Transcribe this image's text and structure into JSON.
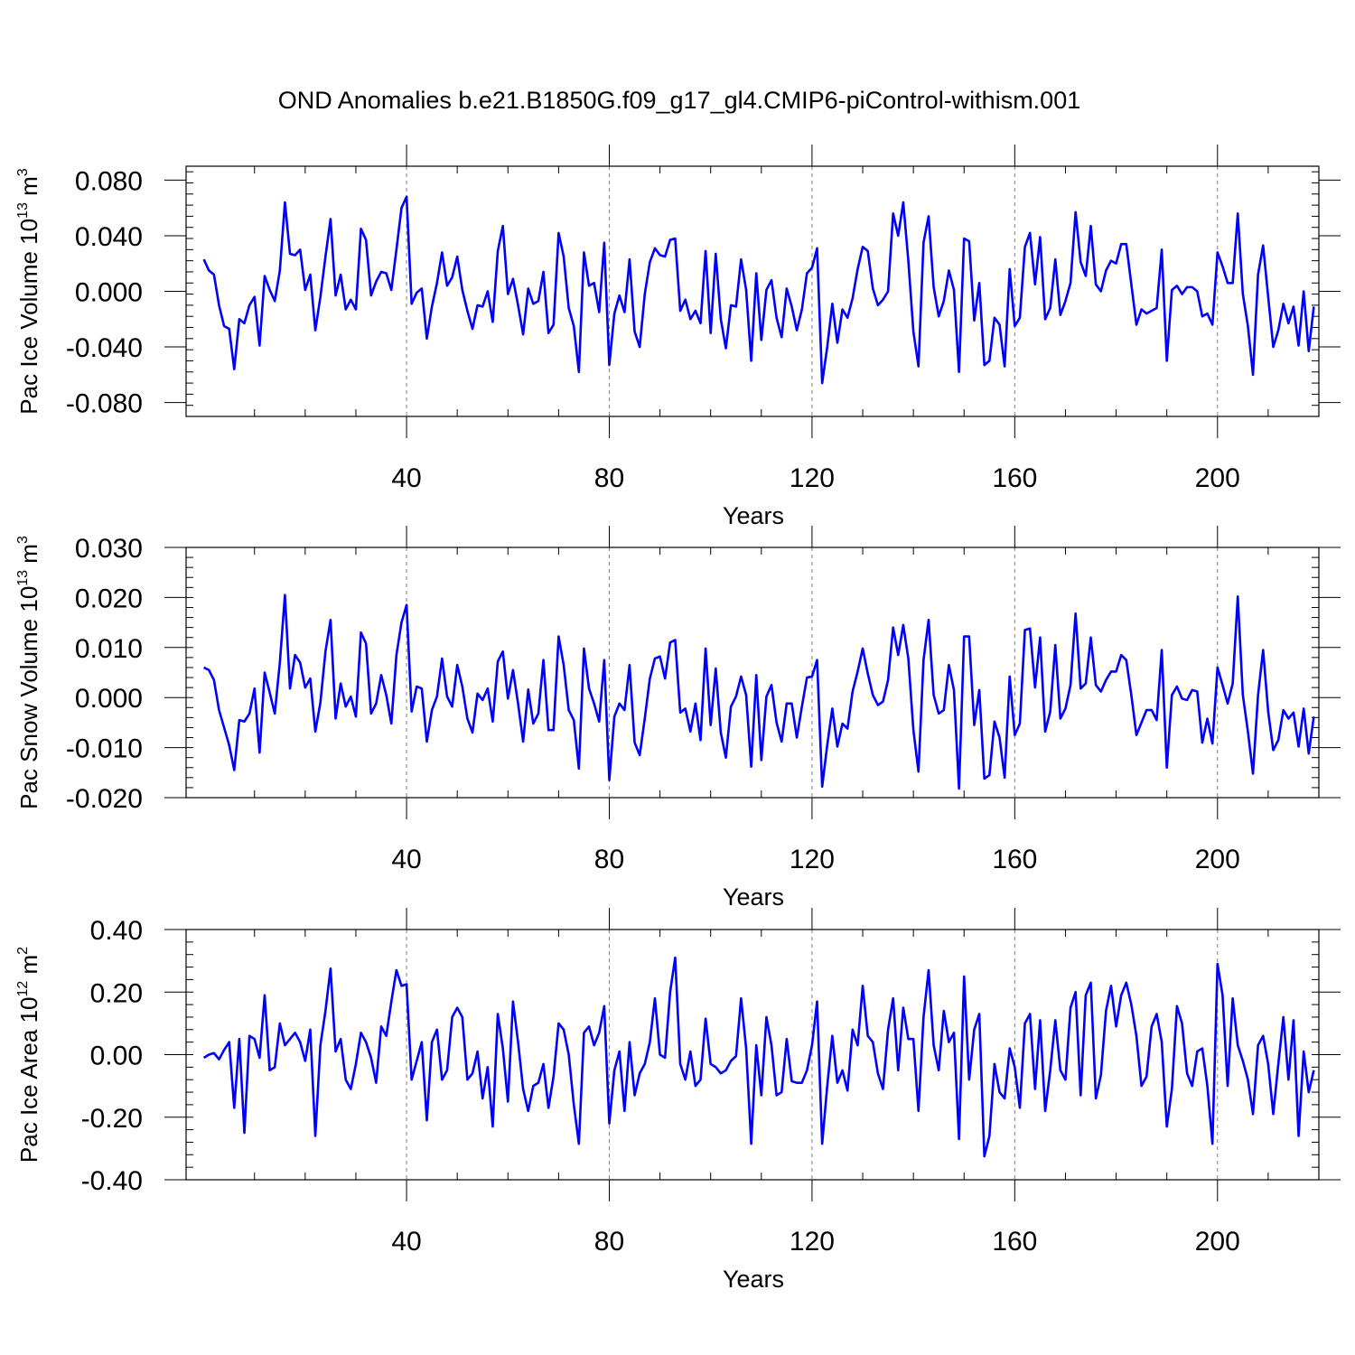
{
  "title": "OND Anomalies b.e21.B1850G.f09_g17_gl4.CMIP6-piControl-withism.001",
  "chart_data": [
    {
      "type": "line",
      "xlabel": "Years",
      "ylabel": "Pac Ice Volume 10",
      "ylabel_exp": "13",
      "ylabel_unit": " m",
      "ylabel_unit_exp": "3",
      "xlim": [
        -3.5,
        220
      ],
      "ylim": [
        -0.09,
        0.09
      ],
      "xticks": [
        40,
        80,
        120,
        160,
        200
      ],
      "xtick_labels": [
        "40",
        "80",
        "120",
        "160",
        "200"
      ],
      "yticks": [
        -0.08,
        -0.04,
        0.0,
        0.04,
        0.08
      ],
      "ytick_labels": [
        "-0.080",
        "-0.040",
        "0.000",
        "0.040",
        "0.080"
      ],
      "grid": "vertical dashed at x ticks",
      "color": "#0000ff",
      "x_start": 0,
      "values": [
        0.023,
        0.015,
        0.012,
        -0.01,
        -0.025,
        -0.027,
        -0.056,
        -0.02,
        -0.023,
        -0.01,
        -0.004,
        -0.039,
        0.011,
        0.001,
        -0.007,
        0.015,
        0.064,
        0.027,
        0.026,
        0.03,
        0.001,
        0.012,
        -0.028,
        -0.004,
        0.025,
        0.052,
        -0.003,
        0.012,
        -0.013,
        -0.006,
        -0.013,
        0.045,
        0.037,
        -0.003,
        0.007,
        0.014,
        0.013,
        0.001,
        0.03,
        0.06,
        0.068,
        -0.009,
        -0.001,
        0.002,
        -0.034,
        -0.011,
        0.006,
        0.028,
        0.004,
        0.01,
        0.025,
        0.001,
        -0.014,
        -0.027,
        -0.01,
        -0.011,
        0.0,
        -0.022,
        0.029,
        0.047,
        -0.002,
        0.009,
        -0.01,
        -0.031,
        0.002,
        -0.009,
        -0.007,
        0.014,
        -0.03,
        -0.024,
        0.042,
        0.025,
        -0.012,
        -0.025,
        -0.058,
        0.028,
        0.004,
        0.006,
        -0.015,
        0.035,
        -0.053,
        -0.016,
        -0.003,
        -0.015,
        0.023,
        -0.029,
        -0.04,
        -0.002,
        0.021,
        0.031,
        0.026,
        0.025,
        0.037,
        0.038,
        -0.014,
        -0.006,
        -0.02,
        -0.014,
        -0.023,
        0.029,
        -0.03,
        0.027,
        -0.02,
        -0.041,
        -0.01,
        -0.011,
        0.023,
        0.001,
        -0.05,
        0.013,
        -0.035,
        0.001,
        0.008,
        -0.019,
        -0.033,
        0.002,
        -0.011,
        -0.028,
        -0.013,
        0.013,
        0.017,
        0.031,
        -0.066,
        -0.04,
        -0.009,
        -0.037,
        -0.013,
        -0.019,
        -0.005,
        0.016,
        0.032,
        0.029,
        0.002,
        -0.01,
        -0.006,
        0.0,
        0.056,
        0.04,
        0.064,
        0.022,
        -0.029,
        -0.054,
        0.035,
        0.054,
        0.003,
        -0.018,
        -0.007,
        0.015,
        0.001,
        -0.058,
        0.038,
        0.036,
        -0.021,
        0.006,
        -0.053,
        -0.05,
        -0.019,
        -0.024,
        -0.054,
        0.016,
        -0.025,
        -0.019,
        0.032,
        0.042,
        0.005,
        0.039,
        -0.02,
        -0.012,
        0.023,
        -0.017,
        -0.007,
        0.006,
        0.057,
        0.021,
        0.011,
        0.047,
        0.005,
        0.0,
        0.015,
        0.022,
        0.02,
        0.034,
        0.034,
        0.005,
        -0.024,
        -0.013,
        -0.016,
        -0.014,
        -0.012,
        0.03,
        -0.05,
        0.001,
        0.004,
        -0.002,
        0.003,
        0.003,
        0.0,
        -0.018,
        -0.016,
        -0.024,
        0.028,
        0.018,
        0.006,
        0.006,
        0.056,
        -0.002,
        -0.025,
        -0.06,
        0.012,
        0.033,
        -0.004,
        -0.04,
        -0.028,
        -0.009,
        -0.023,
        -0.011,
        -0.039,
        0.0,
        -0.043,
        -0.011
      ]
    },
    {
      "type": "line",
      "xlabel": "Years",
      "ylabel": "Pac Snow Volume 10",
      "ylabel_exp": "13",
      "ylabel_unit": " m",
      "ylabel_unit_exp": "3",
      "xlim": [
        -3.5,
        220
      ],
      "ylim": [
        -0.02,
        0.03
      ],
      "xticks": [
        40,
        80,
        120,
        160,
        200
      ],
      "xtick_labels": [
        "40",
        "80",
        "120",
        "160",
        "200"
      ],
      "yticks": [
        -0.02,
        -0.01,
        0.0,
        0.01,
        0.02,
        0.03
      ],
      "ytick_labels": [
        "-0.020",
        "-0.010",
        "0.000",
        "0.010",
        "0.020",
        "0.030"
      ],
      "grid": "vertical dashed at x ticks",
      "color": "#0000ff",
      "x_start": 0,
      "values": [
        0.006,
        0.0055,
        0.0035,
        -0.0025,
        -0.006,
        -0.0095,
        -0.0145,
        -0.0045,
        -0.0048,
        -0.0032,
        0.0018,
        -0.011,
        0.005,
        0.001,
        -0.0032,
        0.007,
        0.0205,
        0.0018,
        0.0085,
        0.007,
        0.002,
        0.0038,
        -0.0068,
        -0.001,
        0.0092,
        0.0155,
        -0.0042,
        0.0028,
        -0.0018,
        0.0002,
        -0.0038,
        0.013,
        0.0108,
        -0.0032,
        -0.0012,
        0.0045,
        0.0005,
        -0.0052,
        0.0085,
        0.015,
        0.0185,
        -0.0028,
        0.0022,
        0.0018,
        -0.0088,
        -0.0025,
        0.0002,
        0.0078,
        0.0002,
        -0.0018,
        0.0065,
        0.0022,
        -0.0042,
        -0.007,
        0.0008,
        -0.0005,
        0.0018,
        -0.0048,
        0.0072,
        0.0092,
        -0.0002,
        0.0055,
        -0.0012,
        -0.0088,
        0.0016,
        -0.0052,
        -0.0032,
        0.0075,
        -0.0065,
        -0.0065,
        0.0122,
        0.0065,
        -0.0025,
        -0.0045,
        -0.0142,
        0.0098,
        0.0018,
        -0.0012,
        -0.0048,
        0.0075,
        -0.0165,
        -0.0038,
        -0.0012,
        -0.0025,
        0.0065,
        -0.009,
        -0.0115,
        -0.0042,
        0.0038,
        0.0078,
        0.0082,
        0.0038,
        0.011,
        0.0115,
        -0.003,
        -0.0022,
        -0.0068,
        -0.0012,
        -0.0085,
        0.0098,
        -0.0055,
        0.0058,
        -0.007,
        -0.012,
        -0.0018,
        0.0002,
        0.0042,
        0.0005,
        -0.0138,
        0.0045,
        -0.0125,
        0.0002,
        0.0025,
        -0.005,
        -0.0088,
        -0.0012,
        -0.0012,
        -0.008,
        -0.0018,
        0.004,
        0.0042,
        0.0075,
        -0.0178,
        -0.0095,
        -0.0022,
        -0.0098,
        -0.0052,
        -0.0062,
        0.0012,
        0.0052,
        0.0098,
        0.0048,
        0.0005,
        -0.0015,
        -0.0008,
        0.0035,
        0.014,
        0.0085,
        0.0145,
        0.0078,
        -0.0065,
        -0.0148,
        0.0075,
        0.0155,
        0.0005,
        -0.0032,
        -0.0025,
        0.0065,
        0.0015,
        -0.0182,
        0.0122,
        0.0122,
        -0.0055,
        0.0015,
        -0.0162,
        -0.0155,
        -0.0048,
        -0.008,
        -0.016,
        0.0042,
        -0.0075,
        -0.0052,
        0.0135,
        0.0138,
        0.002,
        0.012,
        -0.0068,
        -0.0028,
        0.0105,
        -0.0042,
        -0.0022,
        0.0025,
        0.0168,
        0.0018,
        0.0028,
        0.012,
        0.0025,
        0.0012,
        0.0035,
        0.0052,
        0.0052,
        0.0085,
        0.0075,
        0.0005,
        -0.0075,
        -0.005,
        -0.0025,
        -0.0025,
        -0.0045,
        0.0095,
        -0.014,
        0.0005,
        0.0022,
        -0.0002,
        -0.0005,
        0.0015,
        0.0012,
        -0.009,
        -0.0042,
        -0.0092,
        0.006,
        0.0025,
        -0.0012,
        0.0028,
        0.0202,
        0.0005,
        -0.0068,
        -0.0152,
        0.0005,
        0.0095,
        -0.0028,
        -0.0105,
        -0.0085,
        -0.0025,
        -0.0042,
        -0.003,
        -0.0098,
        -0.0022,
        -0.0112,
        -0.0038
      ]
    },
    {
      "type": "line",
      "xlabel": "Years",
      "ylabel": "Pac Ice Area 10",
      "ylabel_exp": "12",
      "ylabel_unit": " m",
      "ylabel_unit_exp": "2",
      "xlim": [
        -3.5,
        220
      ],
      "ylim": [
        -0.4,
        0.4
      ],
      "xticks": [
        40,
        80,
        120,
        160,
        200
      ],
      "xtick_labels": [
        "40",
        "80",
        "120",
        "160",
        "200"
      ],
      "yticks": [
        -0.4,
        -0.2,
        0.0,
        0.2,
        0.4
      ],
      "ytick_labels": [
        "-0.40",
        "-0.20",
        "0.00",
        "0.20",
        "0.40"
      ],
      "grid": "vertical dashed at x ticks",
      "color": "#0000ff",
      "x_start": 0,
      "values": [
        -0.01,
        0.0,
        0.005,
        -0.015,
        0.015,
        0.04,
        -0.17,
        0.05,
        -0.25,
        0.06,
        0.05,
        -0.01,
        0.19,
        -0.05,
        -0.04,
        0.1,
        0.03,
        0.05,
        0.07,
        0.04,
        -0.02,
        0.08,
        -0.26,
        0.03,
        0.14,
        0.275,
        0.01,
        0.05,
        -0.08,
        -0.11,
        -0.03,
        0.07,
        0.04,
        -0.01,
        -0.09,
        0.09,
        0.06,
        0.17,
        0.27,
        0.22,
        0.225,
        -0.08,
        -0.02,
        0.04,
        -0.21,
        0.04,
        0.08,
        -0.08,
        -0.05,
        0.12,
        0.15,
        0.12,
        -0.08,
        -0.06,
        0.01,
        -0.14,
        -0.04,
        -0.23,
        0.13,
        0.02,
        -0.15,
        0.17,
        0.04,
        -0.11,
        -0.18,
        -0.1,
        -0.09,
        -0.03,
        -0.17,
        -0.07,
        0.1,
        0.08,
        0.0,
        -0.16,
        -0.285,
        0.07,
        0.09,
        0.03,
        0.07,
        0.155,
        -0.22,
        -0.05,
        0.01,
        -0.18,
        0.04,
        -0.13,
        -0.06,
        -0.03,
        0.04,
        0.18,
        0.0,
        -0.01,
        0.2,
        0.31,
        -0.03,
        -0.08,
        0.01,
        -0.1,
        -0.08,
        0.115,
        -0.03,
        -0.04,
        -0.06,
        -0.05,
        -0.02,
        -0.005,
        0.18,
        0.02,
        -0.285,
        0.03,
        -0.13,
        0.12,
        0.03,
        -0.13,
        -0.12,
        0.05,
        -0.085,
        -0.09,
        -0.09,
        -0.05,
        0.03,
        0.17,
        -0.285,
        -0.1,
        0.06,
        -0.09,
        -0.05,
        -0.115,
        0.08,
        0.03,
        0.22,
        0.06,
        0.04,
        -0.06,
        -0.11,
        0.08,
        0.18,
        -0.05,
        0.15,
        0.05,
        0.05,
        -0.18,
        0.12,
        0.27,
        0.03,
        -0.05,
        0.14,
        0.04,
        0.07,
        -0.27,
        0.25,
        -0.08,
        0.08,
        0.13,
        -0.325,
        -0.26,
        -0.03,
        -0.12,
        -0.14,
        0.02,
        -0.04,
        -0.17,
        0.1,
        0.13,
        -0.11,
        0.11,
        -0.18,
        -0.05,
        0.11,
        -0.05,
        -0.08,
        0.15,
        0.2,
        -0.13,
        0.19,
        0.23,
        -0.14,
        -0.065,
        0.14,
        0.22,
        0.09,
        0.19,
        0.23,
        0.16,
        0.06,
        -0.1,
        -0.07,
        0.09,
        0.13,
        0.04,
        -0.23,
        -0.11,
        0.155,
        0.1,
        -0.06,
        -0.1,
        0.01,
        0.02,
        -0.1,
        -0.285,
        0.29,
        0.19,
        -0.1,
        0.18,
        0.03,
        -0.02,
        -0.08,
        -0.19,
        0.03,
        0.06,
        -0.03,
        -0.19,
        -0.03,
        0.12,
        -0.08,
        0.11,
        -0.26,
        0.01,
        -0.12,
        -0.05
      ]
    }
  ]
}
